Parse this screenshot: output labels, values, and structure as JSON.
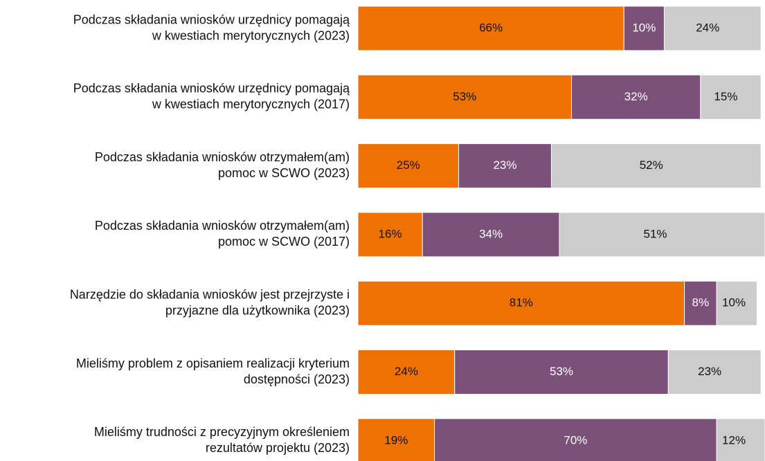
{
  "chart_data": {
    "type": "stacked-bar",
    "categories": [
      [
        "Podczas składania wniosków urzędnicy pomagają",
        "w kwestiach merytorycznych (2023)"
      ],
      [
        "Podczas składania wniosków urzędnicy pomagają",
        "w kwestiach merytorycznych (2017)"
      ],
      [
        "Podczas składania wniosków otrzymałem(am)",
        "pomoc w SCWO (2023)"
      ],
      [
        "Podczas składania wniosków otrzymałem(am)",
        "pomoc w SCWO (2017)"
      ],
      [
        "Narzędzie do składania wniosków jest przejrzyste i",
        "przyjazne dla użytkownika (2023)"
      ],
      [
        "Mieliśmy problem z opisaniem realizacji kryterium",
        "dostępności (2023)"
      ],
      [
        "Mieliśmy trudności z precyzyjnym określeniem",
        "rezultatów projektu (2023)"
      ]
    ],
    "series": [
      {
        "color": "#ee7203",
        "values": [
          66,
          53,
          25,
          16,
          81,
          24,
          19
        ],
        "value_labels": [
          "66%",
          "53%",
          "25%",
          "16%",
          "81%",
          "24%",
          "19%"
        ]
      },
      {
        "color": "#7b5179",
        "values": [
          10,
          32,
          23,
          34,
          8,
          53,
          70
        ],
        "value_labels": [
          "10%",
          "32%",
          "23%",
          "34%",
          "8%",
          "53%",
          "70%"
        ]
      },
      {
        "color": "#cccccc",
        "values": [
          24,
          15,
          52,
          51,
          10,
          23,
          12
        ],
        "value_labels": [
          "24%",
          "15%",
          "52%",
          "51%",
          "10%",
          "23%",
          "12%"
        ]
      }
    ],
    "xlim": [
      0,
      101
    ]
  }
}
